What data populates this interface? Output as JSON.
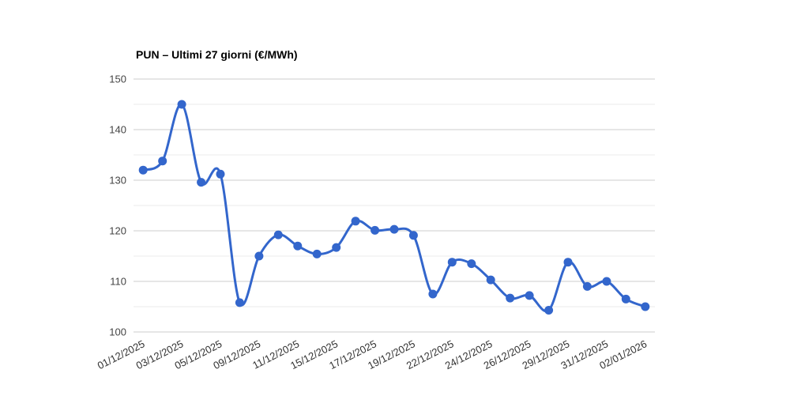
{
  "chart_data": {
    "type": "line",
    "title": "PUN – Ultimi 27 giorni (€/MWh)",
    "xlabel": "",
    "ylabel": "",
    "ylim": [
      100,
      150
    ],
    "grid": true,
    "legend": "none",
    "smooth_curve": true,
    "x_tick_labels": [
      "01/12/2025",
      "03/12/2025",
      "05/12/2025",
      "09/12/2025",
      "11/12/2025",
      "15/12/2025",
      "17/12/2025",
      "19/12/2025",
      "22/12/2025",
      "24/12/2025",
      "26/12/2025",
      "29/12/2025",
      "31/12/2025",
      "02/01/2026"
    ],
    "label_every": 2,
    "values": [
      132.0,
      133.8,
      145.0,
      129.6,
      131.2,
      105.8,
      115.0,
      119.2,
      117.0,
      115.4,
      116.7,
      121.9,
      120.1,
      120.3,
      119.1,
      107.5,
      113.8,
      113.5,
      110.3,
      106.7,
      107.2,
      104.3,
      113.8,
      109.0,
      110.0,
      106.5,
      105.0
    ],
    "y_ticks": [
      100,
      110,
      120,
      130,
      140,
      150
    ],
    "y_minor_ticks": [
      105,
      115,
      125,
      135,
      145
    ],
    "line_color": "#3366cc",
    "marker_color": "#3366cc",
    "major_grid_color": "#cccccc",
    "minor_grid_color": "#ebebeb",
    "y_label_color": "#444444",
    "x_label_color": "#333333",
    "title_color": "#000000"
  }
}
